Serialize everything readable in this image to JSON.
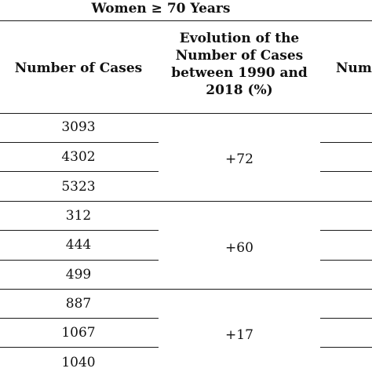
{
  "header": {
    "group_title": "Women ≥ 70 Years",
    "col_cases": "Number of Cases",
    "col_evolution_lines": [
      "Evolution of the",
      "Number of Cases",
      "between 1990 and",
      "2018 (%)"
    ],
    "col_next_partial": "Num"
  },
  "rows": {
    "g1": {
      "cases": [
        "3093",
        "4302",
        "5323"
      ],
      "evolution": "+72"
    },
    "g2": {
      "cases": [
        "312",
        "444",
        "499"
      ],
      "evolution": "+60"
    },
    "g3": {
      "cases": [
        "887",
        "1067",
        "1040"
      ],
      "evolution": "+17"
    }
  }
}
